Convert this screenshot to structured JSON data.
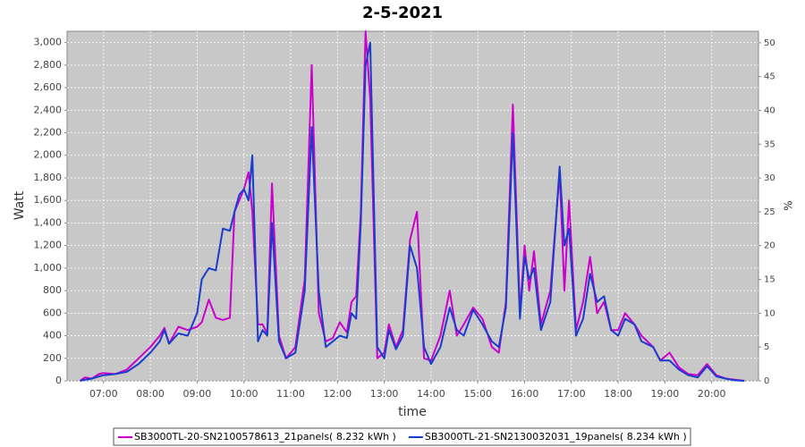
{
  "chart_data": {
    "type": "line",
    "title": "2-5-2021",
    "xlabel": "time",
    "ylabel": "Watt",
    "y2label": "%",
    "x": [
      6.5,
      6.6,
      6.75,
      6.9,
      7.0,
      7.25,
      7.5,
      7.75,
      8.0,
      8.2,
      8.3,
      8.4,
      8.6,
      8.8,
      9.0,
      9.1,
      9.25,
      9.4,
      9.55,
      9.7,
      9.8,
      9.9,
      10.0,
      10.1,
      10.18,
      10.3,
      10.4,
      10.5,
      10.6,
      10.75,
      10.9,
      11.1,
      11.3,
      11.45,
      11.6,
      11.75,
      11.9,
      12.05,
      12.2,
      12.3,
      12.4,
      12.5,
      12.6,
      12.7,
      12.85,
      13.0,
      13.1,
      13.25,
      13.4,
      13.55,
      13.7,
      13.85,
      14.0,
      14.2,
      14.4,
      14.55,
      14.7,
      14.9,
      15.1,
      15.3,
      15.45,
      15.6,
      15.75,
      15.9,
      16.0,
      16.1,
      16.2,
      16.35,
      16.55,
      16.75,
      16.85,
      16.95,
      17.1,
      17.25,
      17.4,
      17.55,
      17.7,
      17.85,
      18.0,
      18.15,
      18.35,
      18.5,
      18.75,
      18.9,
      19.1,
      19.3,
      19.5,
      19.7,
      19.9,
      20.1,
      20.3,
      20.5,
      20.7
    ],
    "series": [
      {
        "name": "SB3000TL-20-SN2100578613_21panels( 8.232 kWh )",
        "color": "#cc00cc",
        "values": [
          0,
          30,
          20,
          60,
          70,
          60,
          100,
          200,
          300,
          400,
          470,
          330,
          480,
          450,
          480,
          520,
          720,
          560,
          540,
          560,
          1500,
          1600,
          1700,
          1850,
          1500,
          500,
          500,
          420,
          1750,
          400,
          200,
          300,
          900,
          2800,
          600,
          350,
          380,
          520,
          430,
          700,
          750,
          1500,
          3100,
          2500,
          200,
          250,
          500,
          300,
          450,
          1250,
          1500,
          200,
          180,
          400,
          800,
          400,
          500,
          650,
          550,
          300,
          250,
          700,
          2450,
          600,
          1200,
          800,
          1150,
          500,
          800,
          1850,
          800,
          1600,
          450,
          700,
          1100,
          600,
          700,
          450,
          450,
          600,
          500,
          400,
          300,
          180,
          250,
          120,
          60,
          50,
          150,
          50,
          20,
          10,
          0
        ]
      },
      {
        "name": "SB3000TL-21-SN2130032031_19panels( 8.234 kWh )",
        "color": "#1a3ccc",
        "values": [
          0,
          10,
          20,
          40,
          50,
          60,
          80,
          150,
          250,
          350,
          450,
          330,
          420,
          400,
          600,
          900,
          1000,
          980,
          1350,
          1330,
          1500,
          1650,
          1700,
          1600,
          2000,
          350,
          450,
          400,
          1400,
          350,
          200,
          250,
          800,
          2250,
          800,
          300,
          350,
          400,
          380,
          600,
          550,
          1400,
          2800,
          3000,
          300,
          200,
          450,
          280,
          400,
          1200,
          1000,
          300,
          150,
          300,
          650,
          450,
          400,
          630,
          500,
          350,
          300,
          650,
          2200,
          550,
          1100,
          900,
          1000,
          450,
          700,
          1900,
          1200,
          1350,
          400,
          550,
          950,
          700,
          750,
          450,
          400,
          550,
          500,
          350,
          300,
          180,
          180,
          100,
          50,
          30,
          130,
          40,
          20,
          5,
          0
        ]
      }
    ],
    "xlim": [
      6.22,
      21.0
    ],
    "xticks": [
      {
        "value": 7,
        "label": "07:00"
      },
      {
        "value": 8,
        "label": "08:00"
      },
      {
        "value": 9,
        "label": "09:00"
      },
      {
        "value": 10,
        "label": "10:00"
      },
      {
        "value": 11,
        "label": "11:00"
      },
      {
        "value": 12,
        "label": "12:00"
      },
      {
        "value": 13,
        "label": "13:00"
      },
      {
        "value": 14,
        "label": "14:00"
      },
      {
        "value": 15,
        "label": "15:00"
      },
      {
        "value": 16,
        "label": "16:00"
      },
      {
        "value": 17,
        "label": "17:00"
      },
      {
        "value": 18,
        "label": "18:00"
      },
      {
        "value": 19,
        "label": "19:00"
      },
      {
        "value": 20,
        "label": "20:00"
      }
    ],
    "ylim": [
      0,
      3100
    ],
    "yticks": [
      0,
      200,
      400,
      600,
      800,
      {
        "value": 1000,
        "label": "1,000"
      },
      {
        "value": 1200,
        "label": "1,200"
      },
      {
        "value": 1400,
        "label": "1,400"
      },
      {
        "value": 1600,
        "label": "1,600"
      },
      {
        "value": 1800,
        "label": "1,800"
      },
      {
        "value": 2000,
        "label": "2,000"
      },
      {
        "value": 2200,
        "label": "2,200"
      },
      {
        "value": 2400,
        "label": "2,400"
      },
      {
        "value": 2600,
        "label": "2,600"
      },
      {
        "value": 2800,
        "label": "2,800"
      },
      {
        "value": 3000,
        "label": "3,000"
      }
    ],
    "y2lim": [
      0,
      51.7
    ],
    "y2ticks": [
      0,
      5,
      10,
      15,
      20,
      25,
      30,
      35,
      40,
      45,
      50
    ],
    "grid": true
  }
}
